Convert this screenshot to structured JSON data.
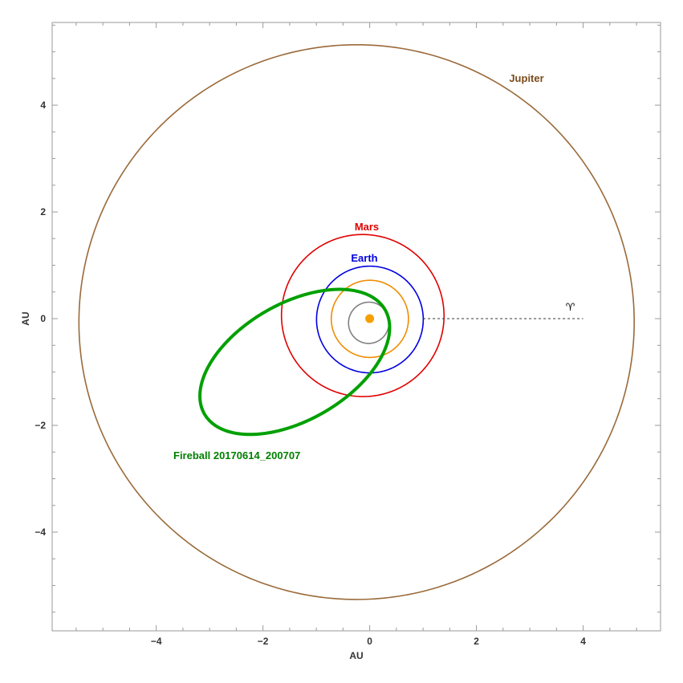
{
  "chart_data": {
    "type": "orbit-diagram",
    "xlabel": "AU",
    "ylabel": "AU",
    "xlim": [
      -5.95,
      5.45
    ],
    "ylim": [
      -5.85,
      5.55
    ],
    "x_ticks": [
      -4,
      -2,
      0,
      2,
      4
    ],
    "y_ticks": [
      -4,
      -2,
      0,
      2,
      4
    ],
    "x_tick_labels": [
      "−4",
      "−2",
      "0",
      "2",
      "4"
    ],
    "y_tick_labels": [
      "−4",
      "−2",
      "0",
      "2",
      "4"
    ],
    "minor_tick_step": 0.5,
    "sun": {
      "x": 0,
      "y": 0,
      "color": "#f5a000"
    },
    "orbits": [
      {
        "id": "mercury",
        "label": "",
        "color": "#808080",
        "a": 0.387,
        "e": 0.2056,
        "peri_deg": 77.46
      },
      {
        "id": "venus",
        "label": "",
        "color": "#f08c00",
        "a": 0.723,
        "e": 0.0068,
        "peri_deg": 131.5
      },
      {
        "id": "earth",
        "label": "Earth",
        "color": "#0000e0",
        "a": 1.0,
        "e": 0.0167,
        "peri_deg": 102.9
      },
      {
        "id": "mars",
        "label": "Mars",
        "color": "#e00000",
        "a": 1.524,
        "e": 0.0934,
        "peri_deg": 336.0
      },
      {
        "id": "jupiter",
        "label": "Jupiter",
        "color": "#9a6a3a",
        "a": 5.203,
        "e": 0.0489,
        "peri_deg": 14.75
      },
      {
        "id": "fireball",
        "label": "Fireball 20170614_200707",
        "color": "#00a000",
        "a": 1.954,
        "e": 0.8296,
        "peri_deg": 30.0,
        "bold": true
      }
    ],
    "vernal_equinox": {
      "symbol": "♈",
      "from_x": 1.0,
      "to_x": 4.0,
      "y": 0
    }
  },
  "label_colors": {
    "mars": "#e00000",
    "earth": "#0000e0",
    "jupiter": "#7a4a1a",
    "fireball": "#008000"
  }
}
